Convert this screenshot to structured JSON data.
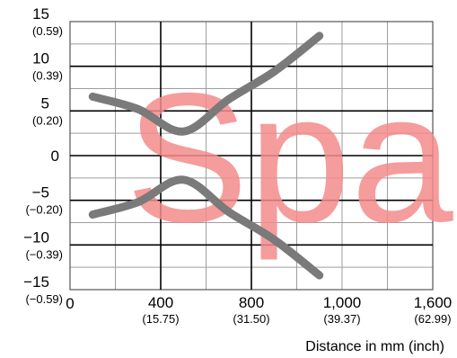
{
  "chart_data": {
    "type": "line",
    "title": "",
    "xlabel": "Distance in mm (inch)",
    "ylabel": "",
    "xlim": [
      0,
      1600
    ],
    "ylim": [
      -15,
      15
    ],
    "grid": true,
    "x_ticks": [
      {
        "value": 0,
        "label": "0",
        "sub": ""
      },
      {
        "value": 400,
        "label": "400",
        "sub": "(15.75)"
      },
      {
        "value": 800,
        "label": "800",
        "sub": "(31.50)"
      },
      {
        "value": 1000,
        "label": "1,000",
        "sub": "(39.37)"
      },
      {
        "value": 1600,
        "label": "1,600",
        "sub": "(62.99)"
      }
    ],
    "y_ticks": [
      {
        "value": 15,
        "label": "15",
        "sub": "(0.59)"
      },
      {
        "value": 10,
        "label": "10",
        "sub": "(0.39)"
      },
      {
        "value": 5,
        "label": "5",
        "sub": "(0.20)"
      },
      {
        "value": 0,
        "label": "0",
        "sub": ""
      },
      {
        "value": -5,
        "label": "−5",
        "sub": "(−0.20)"
      },
      {
        "value": -10,
        "label": "−10",
        "sub": "(−0.39)"
      },
      {
        "value": -15,
        "label": "−15",
        "sub": "(−0.59)"
      }
    ],
    "series": [
      {
        "values": [
          [
            100,
            6.6
          ],
          [
            300,
            5.2
          ],
          [
            500,
            2.7
          ],
          [
            700,
            6.3
          ],
          [
            900,
            9.4
          ],
          [
            1100,
            13.4
          ]
        ]
      },
      {
        "values": [
          [
            100,
            -6.6
          ],
          [
            300,
            -5.2
          ],
          [
            500,
            -2.7
          ],
          [
            700,
            -6.3
          ],
          [
            900,
            -9.4
          ],
          [
            1100,
            -13.4
          ]
        ]
      }
    ],
    "line_color": "#7a7a7a",
    "grid_color": "#9e9e9e"
  },
  "watermark": {
    "text": "Spa",
    "color": "#f48b8b"
  }
}
